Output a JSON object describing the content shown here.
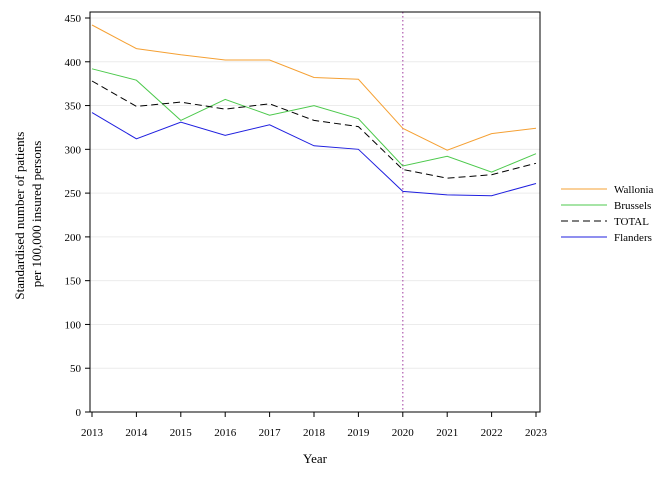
{
  "chart_data": {
    "type": "line",
    "title": "",
    "xlabel": "Year",
    "ylabel_lines": [
      "Standardised number of patients",
      "per 100,000 insured persons"
    ],
    "x": [
      2013,
      2014,
      2015,
      2016,
      2017,
      2018,
      2019,
      2020,
      2021,
      2022,
      2023
    ],
    "ylim": [
      0,
      450
    ],
    "yticks": [
      0,
      50,
      100,
      150,
      200,
      250,
      300,
      350,
      400,
      450
    ],
    "grid": "horizontal",
    "reference_line_x": 2020,
    "legend_position": "right",
    "series": [
      {
        "name": "Wallonia",
        "color": "#f5a033",
        "dash": "solid",
        "values": [
          442,
          415,
          408,
          402,
          402,
          382,
          380,
          324,
          299,
          318,
          324
        ]
      },
      {
        "name": "Brussels",
        "color": "#4cc94c",
        "dash": "solid",
        "values": [
          392,
          379,
          333,
          357,
          339,
          350,
          335,
          281,
          292,
          274,
          295
        ]
      },
      {
        "name": "TOTAL",
        "color": "#000000",
        "dash": "dashed",
        "values": [
          378,
          349,
          354,
          346,
          352,
          333,
          326,
          277,
          267,
          271,
          284
        ]
      },
      {
        "name": "Flanders",
        "color": "#1f1fdf",
        "dash": "solid",
        "values": [
          342,
          312,
          331,
          316,
          328,
          304,
          300,
          252,
          248,
          247,
          261
        ]
      }
    ]
  }
}
